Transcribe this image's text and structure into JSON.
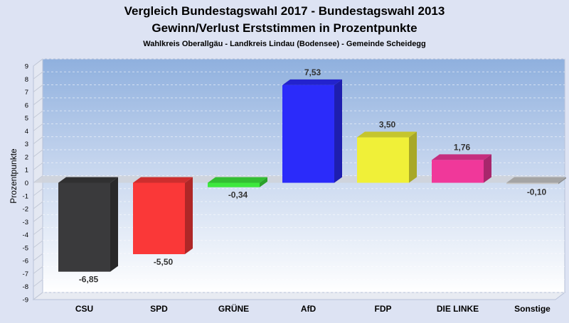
{
  "chart_data": {
    "type": "bar",
    "title": "Vergleich Bundestagswahl 2017 - Bundestagswahl 2013",
    "subtitle": "Gewinn/Verlust Erststimmen in Prozentpunkte",
    "caption": "Wahlkreis Oberallgäu - Landkreis Lindau (Bodensee) - Gemeinde Scheidegg",
    "ylabel": "Prozentpunkte",
    "xlabel": "",
    "ylim": [
      -9,
      9
    ],
    "yticks": [
      "9",
      "8",
      "7",
      "6",
      "5",
      "4",
      "3",
      "2",
      "1",
      "0",
      "-1",
      "-2",
      "-3",
      "-4",
      "-5",
      "-6",
      "-7",
      "-8",
      "-9"
    ],
    "grid": true,
    "legend": "none",
    "categories": [
      "CSU",
      "SPD",
      "GRÜNE",
      "AfD",
      "FDP",
      "DIE LINKE",
      "Sonstige"
    ],
    "values": [
      -6.85,
      -5.5,
      -0.34,
      7.53,
      3.5,
      1.76,
      -0.1
    ],
    "value_labels": [
      "-6,85",
      "-5,50",
      "-0,34",
      "7,53",
      "3,50",
      "1,76",
      "-0,10"
    ],
    "colors": [
      "#3a3a3c",
      "#fa3838",
      "#3ee83e",
      "#2b2bfa",
      "#f0f038",
      "#f0389a",
      "#c8c8c8"
    ]
  }
}
